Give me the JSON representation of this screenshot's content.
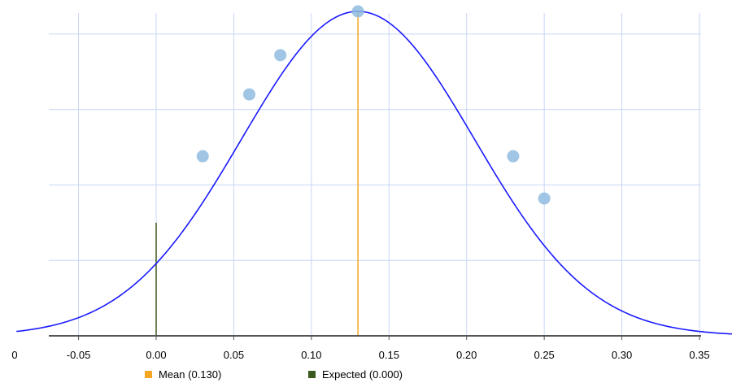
{
  "chart_data": {
    "type": "line",
    "title": "",
    "xlabel": "",
    "ylabel": "",
    "xlim": [
      -0.09,
      0.38
    ],
    "ylim": [
      0,
      4.4
    ],
    "x_ticks": [
      -0.05,
      0.0,
      0.05,
      0.1,
      0.15,
      0.2,
      0.25,
      0.3,
      0.35
    ],
    "x_tick_labels": [
      "-0.05",
      "0.00",
      "0.05",
      "0.10",
      "0.15",
      "0.20",
      "0.25",
      "0.30",
      "0.35"
    ],
    "edge_tick_label": "0",
    "y_gridlines": [
      1,
      2,
      3,
      4
    ],
    "grid": true,
    "curve": {
      "type": "normal",
      "mean": 0.13,
      "sd": 0.075,
      "peak": 4.3,
      "color": "#1a1aff"
    },
    "points": {
      "x": [
        0.03,
        0.06,
        0.08,
        0.13,
        0.23,
        0.25
      ],
      "y": [
        2.38,
        3.2,
        3.72,
        4.3,
        2.38,
        1.82
      ],
      "color": "#8fbbe0"
    },
    "reference_lines": [
      {
        "name": "Mean (0.130)",
        "x": 0.13,
        "y_top": 4.3,
        "color": "#f5a623"
      },
      {
        "name": "Expected (0.000)",
        "x": 0.0,
        "y_top": 1.5,
        "color": "#3d5a1e"
      }
    ],
    "legend": [
      {
        "label": "Mean (0.130)",
        "color": "#f5a623"
      },
      {
        "label": "Expected (0.000)",
        "color": "#3d5a1e"
      }
    ],
    "legend_position": "bottom"
  }
}
